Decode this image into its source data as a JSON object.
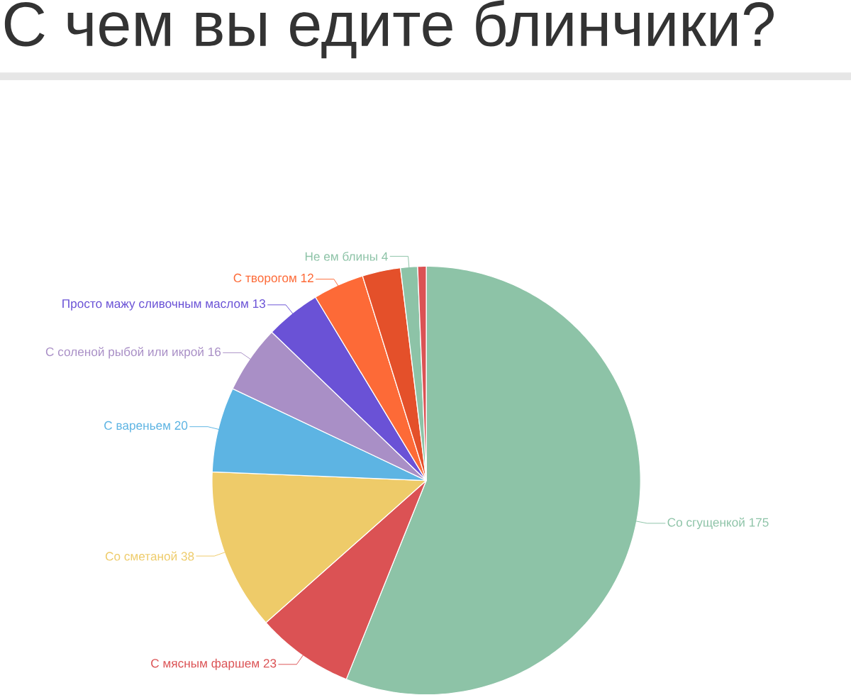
{
  "chart_data": {
    "type": "pie",
    "title": "С чем вы едите блинчики?",
    "categories": [
      "Со сгущенкой",
      "С мясным фаршем",
      "Со сметаной",
      "С вареньем",
      "С соленой рыбой или икрой",
      "Просто мажу сливочным маслом",
      "С творогом",
      null,
      "Не ем блины",
      null
    ],
    "values": [
      175,
      23,
      38,
      20,
      16,
      13,
      12,
      9,
      4,
      2
    ],
    "value_labels": [
      "175",
      "23",
      "38",
      "20",
      "16",
      "13",
      "12",
      null,
      "4",
      null
    ],
    "colors": [
      "#8dc3a7",
      "#db5254",
      "#eecb69",
      "#5db4e3",
      "#a98fc6",
      "#6a52d6",
      "#fd6a37",
      "#e4502a",
      "#8dc3a7",
      "#db5254"
    ]
  }
}
